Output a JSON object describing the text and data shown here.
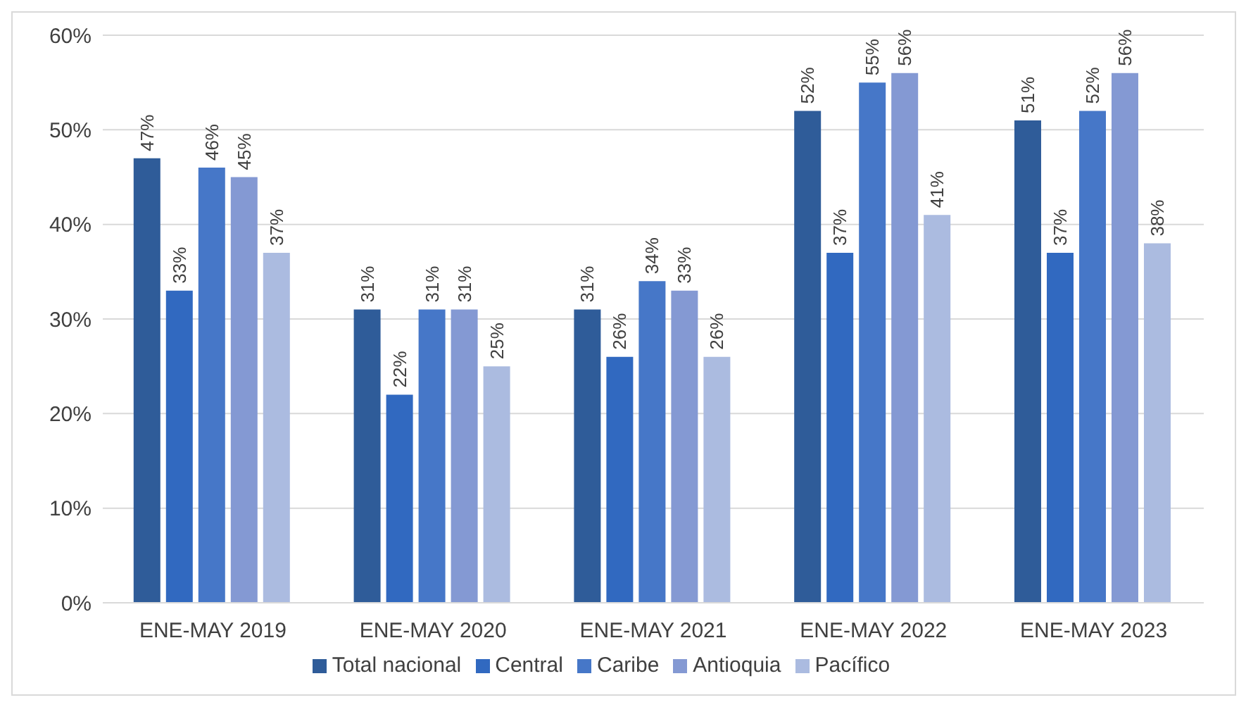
{
  "chart_data": {
    "type": "bar",
    "categories": [
      "ENE-MAY 2019",
      "ENE-MAY 2020",
      "ENE-MAY 2021",
      "ENE-MAY 2022",
      "ENE-MAY 2023"
    ],
    "series": [
      {
        "name": "Total nacional",
        "color": "#2f5c99",
        "values": [
          47,
          31,
          31,
          52,
          51
        ],
        "value_labels": [
          "47%",
          "31%",
          "31%",
          "52%",
          "51%"
        ]
      },
      {
        "name": "Central",
        "color": "#3169c0",
        "values": [
          33,
          22,
          26,
          37,
          37
        ],
        "value_labels": [
          "33%",
          "22%",
          "26%",
          "37%",
          "37%"
        ]
      },
      {
        "name": "Caribe",
        "color": "#4677c8",
        "values": [
          46,
          31,
          34,
          55,
          52
        ],
        "value_labels": [
          "46%",
          "31%",
          "34%",
          "55%",
          "52%"
        ]
      },
      {
        "name": "Antioquia",
        "color": "#8499d3",
        "values": [
          45,
          31,
          33,
          56,
          56
        ],
        "value_labels": [
          "45%",
          "31%",
          "33%",
          "56%",
          "56%"
        ]
      },
      {
        "name": "Pacífico",
        "color": "#abbbe0",
        "values": [
          37,
          25,
          26,
          41,
          38
        ],
        "value_labels": [
          "37%",
          "25%",
          "26%",
          "41%",
          "38%"
        ]
      }
    ],
    "ylim": [
      0,
      60
    ],
    "yticks": [
      {
        "value": 0,
        "label": "0%"
      },
      {
        "value": 10,
        "label": "10%"
      },
      {
        "value": 20,
        "label": "20%"
      },
      {
        "value": 30,
        "label": "30%"
      },
      {
        "value": 40,
        "label": "40%"
      },
      {
        "value": 50,
        "label": "50%"
      },
      {
        "value": 60,
        "label": "60%"
      }
    ],
    "grid": "y",
    "legend": "bottom"
  }
}
